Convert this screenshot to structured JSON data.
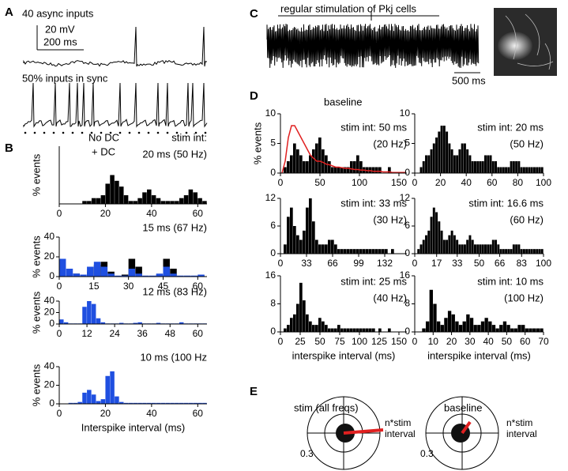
{
  "figure": {
    "panels": [
      "A",
      "B",
      "C",
      "D",
      "E"
    ],
    "panel_a": {
      "trace_1": "40 async inputs",
      "scale_mv": "20 mV",
      "scale_ms": "200 ms",
      "trace_2": "50% inputs in sync"
    },
    "legend": [
      {
        "name": "No DC",
        "color": "#000000"
      },
      {
        "name": "+ DC",
        "color": "#1f4fe0"
      }
    ],
    "panel_c": {
      "title": "regular stimulation of Pkj cells",
      "scale": "500 ms"
    },
    "panel_e": [
      {
        "title": "stim (all freqs)",
        "radius_label": "0.3",
        "vector_label": [
          "n*stim",
          "interval"
        ]
      },
      {
        "title": "baseline",
        "radius_label": "0.3",
        "vector_label": [
          "n*stim",
          "interval"
        ]
      }
    ]
  },
  "chart_data": [
    {
      "type": "histogram",
      "ylabel": "% events",
      "annotation": [
        "stim int:",
        "20 ms (50 Hz)"
      ],
      "xlim": [
        0,
        64
      ],
      "xticks": [
        0,
        20,
        40,
        60
      ],
      "ylim": [
        0,
        20
      ],
      "bins": [
        0,
        2,
        4,
        6,
        8,
        10,
        12,
        14,
        16,
        18,
        20,
        22,
        24,
        26,
        28,
        30,
        32,
        34,
        36,
        38,
        40,
        42,
        44,
        46,
        48,
        50,
        52,
        54,
        56,
        58,
        60,
        62,
        64
      ],
      "series": [
        {
          "color": "#000000",
          "values": [
            0,
            0,
            0,
            0,
            0,
            1,
            1,
            2,
            2,
            3,
            7,
            10,
            8,
            6,
            3,
            1,
            1,
            2,
            4,
            5,
            3,
            2,
            1,
            1,
            1,
            1,
            2,
            3,
            5,
            4,
            2,
            1
          ]
        }
      ]
    },
    {
      "type": "histogram",
      "ylabel": "% events",
      "annotation": [
        "15 ms (67 Hz)"
      ],
      "xlim": [
        0,
        64
      ],
      "xticks": [
        0,
        15,
        30,
        45,
        60
      ],
      "ylim": [
        0,
        40
      ],
      "yticks": [
        0,
        20,
        40
      ],
      "bins": [
        0,
        3,
        6,
        9,
        12,
        15,
        18,
        21,
        24,
        27,
        30,
        33,
        36,
        39,
        42,
        45,
        48,
        51,
        54,
        57,
        60,
        63
      ],
      "series": [
        {
          "color": "#000000",
          "values": [
            0,
            0,
            3,
            0,
            5,
            12,
            15,
            5,
            0,
            2,
            18,
            10,
            0,
            0,
            2,
            18,
            8,
            0,
            0,
            0,
            1
          ]
        },
        {
          "color": "#1f4fe0",
          "values": [
            18,
            8,
            3,
            2,
            10,
            15,
            10,
            3,
            1,
            1,
            8,
            3,
            1,
            1,
            3,
            10,
            3,
            1,
            1,
            1,
            2
          ]
        }
      ]
    },
    {
      "type": "histogram",
      "ylabel": "% events",
      "annotation": [
        "12 ms (83 Hz)"
      ],
      "xlim": [
        0,
        64
      ],
      "xticks": [
        0,
        12,
        24,
        36,
        48,
        60
      ],
      "ylim": [
        0,
        40
      ],
      "yticks": [
        0,
        20,
        40
      ],
      "bins": [
        0,
        2,
        4,
        6,
        8,
        10,
        12,
        14,
        16,
        18,
        20,
        22,
        24,
        26,
        28,
        30,
        32,
        34,
        36,
        38,
        40,
        42,
        44,
        46,
        48,
        50,
        52,
        54,
        56,
        58,
        60,
        62,
        64
      ],
      "series": [
        {
          "color": "#1f4fe0",
          "values": [
            8,
            3,
            1,
            1,
            1,
            30,
            40,
            35,
            10,
            3,
            1,
            1,
            1,
            2,
            1,
            1,
            2,
            3,
            1,
            1,
            1,
            2,
            1,
            1,
            1,
            1,
            3,
            1,
            1,
            1,
            1,
            1
          ]
        }
      ]
    },
    {
      "type": "histogram",
      "ylabel": "% events",
      "xlabel": "Interspike interval (ms)",
      "annotation": [
        "10 ms (100 Hz"
      ],
      "xlim": [
        0,
        64
      ],
      "xticks": [
        0,
        20,
        40,
        60
      ],
      "ylim": [
        0,
        40
      ],
      "yticks": [
        0,
        20,
        40
      ],
      "bins": [
        0,
        2,
        4,
        6,
        8,
        10,
        12,
        14,
        16,
        18,
        20,
        22,
        24,
        26,
        28,
        30,
        32,
        34,
        36,
        38,
        40,
        42,
        44,
        46,
        48,
        50,
        52,
        54,
        56,
        58,
        60,
        62,
        64
      ],
      "series": [
        {
          "color": "#1f4fe0",
          "values": [
            0,
            0,
            1,
            1,
            2,
            12,
            15,
            10,
            3,
            5,
            30,
            35,
            8,
            2,
            1,
            1,
            1,
            1,
            1,
            1,
            1,
            1,
            1,
            1,
            1,
            1,
            1,
            1,
            1,
            1,
            1,
            1
          ]
        }
      ]
    },
    {
      "type": "histogram",
      "ylabel": "% events",
      "annotation": [
        "stim int: 50 ms",
        "(20 Hz)"
      ],
      "xlim": [
        0,
        160
      ],
      "xticks": [
        0,
        50,
        100,
        150
      ],
      "ylim": [
        0,
        10
      ],
      "yticks": [
        0,
        5,
        10
      ],
      "bins": [
        0,
        4,
        8,
        12,
        16,
        20,
        24,
        28,
        32,
        36,
        40,
        44,
        48,
        52,
        56,
        60,
        64,
        68,
        72,
        76,
        80,
        84,
        88,
        92,
        96,
        100,
        104,
        108,
        112,
        116,
        120,
        124,
        128,
        132,
        136,
        140,
        144,
        148,
        152,
        156,
        160
      ],
      "series": [
        {
          "color": "#000000",
          "values": [
            0,
            1,
            2,
            3,
            5,
            4,
            3,
            2,
            2,
            3,
            4,
            5,
            6,
            4,
            3,
            2,
            1,
            1,
            1,
            1,
            1,
            1,
            2,
            2,
            3,
            2,
            1,
            1,
            1,
            1,
            1,
            1,
            0,
            0,
            1,
            0,
            0,
            0,
            0,
            0
          ]
        },
        {
          "name": "baseline",
          "color": "#e02020",
          "style": "line",
          "values": [
            0,
            2,
            6,
            8,
            8,
            7,
            6,
            5,
            4,
            3,
            2.5,
            2,
            2,
            1.8,
            1.5,
            1.4,
            1.2,
            1,
            1,
            0.9,
            0.8,
            0.8,
            0.7,
            0.6,
            0.6,
            0.5,
            0.5,
            0.4,
            0.4,
            0.3,
            0.3,
            0.3,
            0.2,
            0.2,
            0.2,
            0.1,
            0.1,
            0.1,
            0.1,
            0.1
          ]
        }
      ]
    },
    {
      "type": "histogram",
      "annotation": [
        "stim int: 20 ms",
        "(50 Hz)"
      ],
      "xlim": [
        0,
        100
      ],
      "xticks": [
        0,
        20,
        40,
        60,
        80,
        100
      ],
      "ylim": [
        0,
        10
      ],
      "yticks": [
        0,
        5,
        10
      ],
      "bins": [
        0,
        2,
        4,
        6,
        8,
        10,
        12,
        14,
        16,
        18,
        20,
        22,
        24,
        26,
        28,
        30,
        32,
        34,
        36,
        38,
        40,
        42,
        44,
        46,
        48,
        50,
        52,
        54,
        56,
        58,
        60,
        62,
        64,
        66,
        68,
        70,
        72,
        74,
        76,
        78,
        80,
        82,
        84,
        86,
        88,
        90,
        92,
        94,
        96,
        98,
        100
      ],
      "series": [
        {
          "color": "#000000",
          "values": [
            0,
            0,
            1,
            2,
            3,
            3,
            4,
            5,
            6,
            7,
            8,
            8,
            7,
            5,
            4,
            3,
            3,
            4,
            5,
            5,
            4,
            3,
            2,
            2,
            2,
            2,
            2,
            3,
            3,
            3,
            2,
            2,
            1,
            1,
            1,
            1,
            1,
            2,
            2,
            2,
            2,
            1,
            1,
            1,
            1,
            1,
            1,
            1,
            1,
            1
          ]
        }
      ]
    },
    {
      "type": "histogram",
      "annotation": [
        "stim int: 33 ms",
        "(30 Hz)"
      ],
      "xlim": [
        0,
        160
      ],
      "xticks": [
        0,
        33,
        66,
        99,
        132
      ],
      "ylim": [
        0,
        12
      ],
      "yticks": [
        0,
        6,
        12
      ],
      "bins": [
        0,
        4,
        8,
        12,
        16,
        20,
        24,
        28,
        32,
        36,
        40,
        44,
        48,
        52,
        56,
        60,
        64,
        68,
        72,
        76,
        80,
        84,
        88,
        92,
        96,
        100,
        104,
        108,
        112,
        116,
        120,
        124,
        128,
        132,
        136,
        140,
        144,
        148,
        152,
        156,
        160
      ],
      "series": [
        {
          "color": "#000000",
          "values": [
            0,
            2,
            8,
            10,
            6,
            4,
            3,
            5,
            10,
            12,
            7,
            3,
            2,
            2,
            2,
            3,
            3,
            2,
            1,
            1,
            1,
            1,
            1,
            1,
            1,
            1,
            1,
            1,
            1,
            1,
            1,
            1,
            1,
            1,
            0,
            1,
            0,
            0,
            0,
            0
          ]
        }
      ]
    },
    {
      "type": "histogram",
      "annotation": [
        "stim int: 16.6 ms",
        "(60 Hz)"
      ],
      "xlim": [
        0,
        100
      ],
      "xticks": [
        0,
        17,
        33,
        50,
        66,
        83,
        100
      ],
      "ylim": [
        0,
        12
      ],
      "yticks": [
        0,
        6,
        12
      ],
      "bins": [
        0,
        2,
        4,
        6,
        8,
        10,
        12,
        14,
        16,
        18,
        20,
        22,
        24,
        26,
        28,
        30,
        32,
        34,
        36,
        38,
        40,
        42,
        44,
        46,
        48,
        50,
        52,
        54,
        56,
        58,
        60,
        62,
        64,
        66,
        68,
        70,
        72,
        74,
        76,
        78,
        80,
        82,
        84,
        86,
        88,
        90,
        92,
        94,
        96,
        98,
        100
      ],
      "series": [
        {
          "color": "#000000",
          "values": [
            0,
            1,
            2,
            3,
            4,
            5,
            8,
            10,
            9,
            7,
            5,
            3,
            3,
            4,
            5,
            4,
            3,
            2,
            2,
            2,
            3,
            4,
            3,
            2,
            2,
            2,
            2,
            2,
            2,
            2,
            3,
            3,
            2,
            1,
            1,
            1,
            1,
            1,
            2,
            2,
            2,
            1,
            1,
            1,
            1,
            1,
            1,
            1,
            1,
            1
          ]
        }
      ]
    },
    {
      "type": "histogram",
      "xlabel": "interspike interval (ms)",
      "annotation": [
        "stim int: 25 ms",
        "(40 Hz)"
      ],
      "xlim": [
        0,
        160
      ],
      "xticks": [
        0,
        25,
        50,
        75,
        100,
        125,
        150
      ],
      "ylim": [
        0,
        16
      ],
      "yticks": [
        0,
        8,
        16
      ],
      "bins": [
        0,
        4,
        8,
        12,
        16,
        20,
        24,
        28,
        32,
        36,
        40,
        44,
        48,
        52,
        56,
        60,
        64,
        68,
        72,
        76,
        80,
        84,
        88,
        92,
        96,
        100,
        104,
        108,
        112,
        116,
        120,
        124,
        128,
        132,
        136,
        140,
        144,
        148,
        152,
        156,
        160
      ],
      "series": [
        {
          "color": "#000000",
          "values": [
            0,
            1,
            2,
            4,
            5,
            8,
            14,
            9,
            5,
            3,
            2,
            2,
            4,
            3,
            2,
            1,
            1,
            1,
            2,
            1,
            1,
            1,
            1,
            1,
            1,
            1,
            1,
            1,
            1,
            1,
            0,
            1,
            0,
            0,
            1,
            0,
            0,
            0,
            0,
            0
          ]
        }
      ]
    },
    {
      "type": "histogram",
      "xlabel": "interspike interval (ms)",
      "annotation": [
        "stim int: 10 ms",
        "(100 Hz)"
      ],
      "xlim": [
        0,
        70
      ],
      "xticks": [
        0,
        10,
        20,
        30,
        40,
        50,
        60,
        70
      ],
      "ylim": [
        0,
        16
      ],
      "yticks": [
        0,
        8,
        16
      ],
      "bins": [
        0,
        2,
        4,
        6,
        8,
        10,
        12,
        14,
        16,
        18,
        20,
        22,
        24,
        26,
        28,
        30,
        32,
        34,
        36,
        38,
        40,
        42,
        44,
        46,
        48,
        50,
        52,
        54,
        56,
        58,
        60,
        62,
        64,
        66,
        68,
        70
      ],
      "series": [
        {
          "color": "#000000",
          "values": [
            0,
            0,
            1,
            3,
            12,
            8,
            3,
            2,
            4,
            6,
            5,
            3,
            2,
            3,
            5,
            4,
            2,
            2,
            3,
            4,
            3,
            2,
            1,
            2,
            3,
            2,
            1,
            1,
            2,
            2,
            1,
            1,
            1,
            1,
            1
          ]
        }
      ]
    }
  ]
}
